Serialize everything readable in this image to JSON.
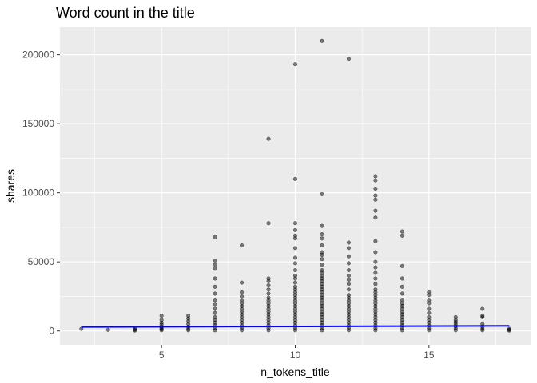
{
  "chart_data": {
    "type": "scatter",
    "title": "Word count in the title",
    "xlabel": "n_tokens_title",
    "ylabel": "shares",
    "xlim": [
      1.2,
      18.8
    ],
    "ylim": [
      -10000,
      220000
    ],
    "x_ticks": [
      5,
      10,
      15
    ],
    "y_ticks": [
      0,
      50000,
      100000,
      150000,
      200000
    ],
    "x_tick_labels": [
      "5",
      "10",
      "15"
    ],
    "y_tick_labels": [
      "0",
      "50000",
      "100000",
      "150000",
      "200000"
    ],
    "grid": true,
    "panel_background": "#ebebeb",
    "grid_color": "#ffffff",
    "point_color": "#000000",
    "point_alpha": 0.5,
    "trend_line": {
      "color": "#0000ff",
      "x": [
        2,
        18
      ],
      "y": [
        2900,
        3700
      ]
    },
    "points": [
      [
        2,
        1500
      ],
      [
        3,
        800
      ],
      [
        4,
        300
      ],
      [
        4,
        900
      ],
      [
        4,
        1500
      ],
      [
        5,
        500
      ],
      [
        5,
        1200
      ],
      [
        5,
        2000
      ],
      [
        5,
        3000
      ],
      [
        5,
        4500
      ],
      [
        5,
        6000
      ],
      [
        5,
        8000
      ],
      [
        5,
        11000
      ],
      [
        6,
        500
      ],
      [
        6,
        1500
      ],
      [
        6,
        3000
      ],
      [
        6,
        5000
      ],
      [
        6,
        7000
      ],
      [
        6,
        9000
      ],
      [
        6,
        11000
      ],
      [
        7,
        500
      ],
      [
        7,
        2000
      ],
      [
        7,
        4000
      ],
      [
        7,
        6000
      ],
      [
        7,
        8000
      ],
      [
        7,
        10000
      ],
      [
        7,
        13000
      ],
      [
        7,
        16000
      ],
      [
        7,
        19000
      ],
      [
        7,
        22000
      ],
      [
        7,
        27000
      ],
      [
        7,
        32000
      ],
      [
        7,
        38000
      ],
      [
        7,
        45000
      ],
      [
        7,
        48000
      ],
      [
        7,
        51000
      ],
      [
        7,
        68000
      ],
      [
        8,
        500
      ],
      [
        8,
        2000
      ],
      [
        8,
        4000
      ],
      [
        8,
        6000
      ],
      [
        8,
        8000
      ],
      [
        8,
        10000
      ],
      [
        8,
        12000
      ],
      [
        8,
        14000
      ],
      [
        8,
        16000
      ],
      [
        8,
        18000
      ],
      [
        8,
        20000
      ],
      [
        8,
        22000
      ],
      [
        8,
        25000
      ],
      [
        8,
        28000
      ],
      [
        8,
        35000
      ],
      [
        8,
        62000
      ],
      [
        9,
        500
      ],
      [
        9,
        2000
      ],
      [
        9,
        4000
      ],
      [
        9,
        6000
      ],
      [
        9,
        8000
      ],
      [
        9,
        10000
      ],
      [
        9,
        12000
      ],
      [
        9,
        14000
      ],
      [
        9,
        16000
      ],
      [
        9,
        18000
      ],
      [
        9,
        20000
      ],
      [
        9,
        22000
      ],
      [
        9,
        24000
      ],
      [
        9,
        27000
      ],
      [
        9,
        30000
      ],
      [
        9,
        33000
      ],
      [
        9,
        36000
      ],
      [
        9,
        38000
      ],
      [
        9,
        78000
      ],
      [
        9,
        139000
      ],
      [
        10,
        500
      ],
      [
        10,
        2000
      ],
      [
        10,
        4000
      ],
      [
        10,
        6000
      ],
      [
        10,
        8000
      ],
      [
        10,
        10000
      ],
      [
        10,
        12000
      ],
      [
        10,
        14000
      ],
      [
        10,
        16000
      ],
      [
        10,
        18000
      ],
      [
        10,
        20000
      ],
      [
        10,
        22000
      ],
      [
        10,
        24000
      ],
      [
        10,
        26000
      ],
      [
        10,
        28000
      ],
      [
        10,
        30000
      ],
      [
        10,
        32000
      ],
      [
        10,
        35000
      ],
      [
        10,
        38000
      ],
      [
        10,
        40000
      ],
      [
        10,
        44000
      ],
      [
        10,
        49000
      ],
      [
        10,
        53000
      ],
      [
        10,
        60000
      ],
      [
        10,
        67000
      ],
      [
        10,
        69000
      ],
      [
        10,
        73000
      ],
      [
        10,
        78000
      ],
      [
        10,
        110000
      ],
      [
        10,
        193000
      ],
      [
        11,
        500
      ],
      [
        11,
        2000
      ],
      [
        11,
        4000
      ],
      [
        11,
        6000
      ],
      [
        11,
        8000
      ],
      [
        11,
        10000
      ],
      [
        11,
        12000
      ],
      [
        11,
        14000
      ],
      [
        11,
        16000
      ],
      [
        11,
        18000
      ],
      [
        11,
        20000
      ],
      [
        11,
        22000
      ],
      [
        11,
        24000
      ],
      [
        11,
        26000
      ],
      [
        11,
        28000
      ],
      [
        11,
        30000
      ],
      [
        11,
        32000
      ],
      [
        11,
        34000
      ],
      [
        11,
        36000
      ],
      [
        11,
        38000
      ],
      [
        11,
        40000
      ],
      [
        11,
        42000
      ],
      [
        11,
        44000
      ],
      [
        11,
        48000
      ],
      [
        11,
        52000
      ],
      [
        11,
        55000
      ],
      [
        11,
        57000
      ],
      [
        11,
        62000
      ],
      [
        11,
        67000
      ],
      [
        11,
        70000
      ],
      [
        11,
        76000
      ],
      [
        11,
        99000
      ],
      [
        11,
        210000
      ],
      [
        12,
        500
      ],
      [
        12,
        2000
      ],
      [
        12,
        4000
      ],
      [
        12,
        6000
      ],
      [
        12,
        8000
      ],
      [
        12,
        10000
      ],
      [
        12,
        12000
      ],
      [
        12,
        14000
      ],
      [
        12,
        16000
      ],
      [
        12,
        18000
      ],
      [
        12,
        20000
      ],
      [
        12,
        22000
      ],
      [
        12,
        24000
      ],
      [
        12,
        26000
      ],
      [
        12,
        30000
      ],
      [
        12,
        34000
      ],
      [
        12,
        37000
      ],
      [
        12,
        40000
      ],
      [
        12,
        44000
      ],
      [
        12,
        49000
      ],
      [
        12,
        54000
      ],
      [
        12,
        60000
      ],
      [
        12,
        64000
      ],
      [
        12,
        197000
      ],
      [
        13,
        500
      ],
      [
        13,
        2000
      ],
      [
        13,
        4000
      ],
      [
        13,
        6000
      ],
      [
        13,
        8000
      ],
      [
        13,
        10000
      ],
      [
        13,
        12000
      ],
      [
        13,
        14000
      ],
      [
        13,
        16000
      ],
      [
        13,
        18000
      ],
      [
        13,
        20000
      ],
      [
        13,
        22000
      ],
      [
        13,
        24000
      ],
      [
        13,
        26000
      ],
      [
        13,
        28000
      ],
      [
        13,
        30000
      ],
      [
        13,
        34000
      ],
      [
        13,
        38000
      ],
      [
        13,
        42000
      ],
      [
        13,
        46000
      ],
      [
        13,
        50000
      ],
      [
        13,
        57000
      ],
      [
        13,
        65000
      ],
      [
        13,
        82000
      ],
      [
        13,
        87000
      ],
      [
        13,
        95000
      ],
      [
        13,
        98000
      ],
      [
        13,
        103000
      ],
      [
        13,
        109000
      ],
      [
        13,
        112000
      ],
      [
        14,
        500
      ],
      [
        14,
        2000
      ],
      [
        14,
        4000
      ],
      [
        14,
        6000
      ],
      [
        14,
        8000
      ],
      [
        14,
        10000
      ],
      [
        14,
        12000
      ],
      [
        14,
        14000
      ],
      [
        14,
        16000
      ],
      [
        14,
        18000
      ],
      [
        14,
        20000
      ],
      [
        14,
        22000
      ],
      [
        14,
        27000
      ],
      [
        14,
        32000
      ],
      [
        14,
        38000
      ],
      [
        14,
        47000
      ],
      [
        14,
        69000
      ],
      [
        14,
        72000
      ],
      [
        15,
        500
      ],
      [
        15,
        2000
      ],
      [
        15,
        4000
      ],
      [
        15,
        6000
      ],
      [
        15,
        8000
      ],
      [
        15,
        10000
      ],
      [
        15,
        13000
      ],
      [
        15,
        16000
      ],
      [
        15,
        20000
      ],
      [
        15,
        22000
      ],
      [
        15,
        26000
      ],
      [
        15,
        28000
      ],
      [
        16,
        500
      ],
      [
        16,
        2000
      ],
      [
        16,
        3500
      ],
      [
        16,
        5000
      ],
      [
        16,
        6500
      ],
      [
        16,
        8000
      ],
      [
        16,
        10000
      ],
      [
        17,
        500
      ],
      [
        17,
        1500
      ],
      [
        17,
        3000
      ],
      [
        17,
        5000
      ],
      [
        17,
        10000
      ],
      [
        17,
        11000
      ],
      [
        17,
        16000
      ],
      [
        18,
        300
      ],
      [
        18,
        900
      ],
      [
        18,
        1500
      ]
    ]
  }
}
